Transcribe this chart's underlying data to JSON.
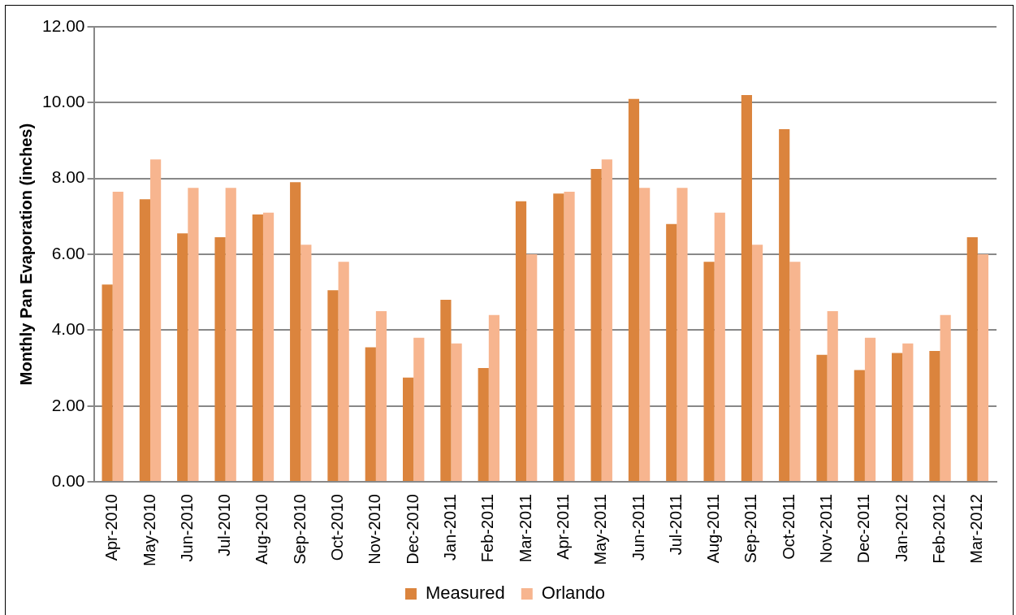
{
  "chart_data": {
    "type": "bar",
    "ylabel": "Monthly Pan Evaporation (inches)",
    "categories": [
      "Apr-2010",
      "May-2010",
      "Jun-2010",
      "Jul-2010",
      "Aug-2010",
      "Sep-2010",
      "Oct-2010",
      "Nov-2010",
      "Dec-2010",
      "Jan-2011",
      "Feb-2011",
      "Mar-2011",
      "Apr-2011",
      "May-2011",
      "Jun-2011",
      "Jul-2011",
      "Aug-2011",
      "Sep-2011",
      "Oct-2011",
      "Nov-2011",
      "Dec-2011",
      "Jan-2012",
      "Feb-2012",
      "Mar-2012"
    ],
    "series": [
      {
        "name": "Measured",
        "color": "#db843d",
        "values": [
          5.2,
          7.45,
          6.55,
          6.45,
          7.05,
          7.9,
          5.05,
          3.55,
          2.75,
          4.8,
          3.0,
          7.4,
          7.6,
          8.25,
          10.1,
          6.8,
          5.8,
          10.2,
          9.3,
          3.35,
          2.95,
          3.4,
          3.45,
          6.45
        ]
      },
      {
        "name": "Orlando",
        "color": "#f7b58f",
        "values": [
          7.65,
          8.5,
          7.75,
          7.75,
          7.1,
          6.25,
          5.8,
          4.5,
          3.8,
          3.65,
          4.4,
          6.0,
          7.65,
          8.5,
          7.75,
          7.75,
          7.1,
          6.25,
          5.8,
          4.5,
          3.8,
          3.65,
          4.4,
          6.0
        ]
      }
    ],
    "ylim": [
      0,
      12
    ],
    "yticks": [
      {
        "value": 0,
        "label": "0.00"
      },
      {
        "value": 2,
        "label": "2.00"
      },
      {
        "value": 4,
        "label": "4.00"
      },
      {
        "value": 6,
        "label": "6.00"
      },
      {
        "value": 8,
        "label": "8.00"
      },
      {
        "value": 10,
        "label": "10.00"
      },
      {
        "value": 12,
        "label": "12.00"
      }
    ],
    "grid": "y",
    "legend": "bottom"
  }
}
